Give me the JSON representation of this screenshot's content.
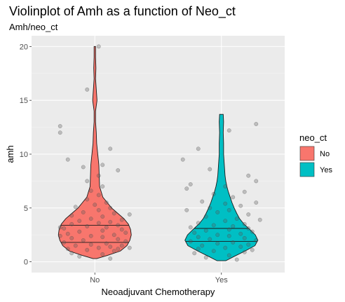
{
  "chart_data": {
    "type": "violin",
    "title": "Violinplot of Amh as a function of Neo_ct",
    "subtitle": "Amh/neo_ct",
    "xlabel": "Neoadjuvant Chemotherapy",
    "ylabel": "amh",
    "categories": [
      "No",
      "Yes"
    ],
    "ylim": [
      -1,
      21
    ],
    "yticks": [
      0,
      5,
      10,
      15,
      20
    ],
    "grid": true,
    "legend": {
      "title": "neo_ct",
      "position": "right",
      "entries": [
        {
          "label": "No",
          "color": "#F8766D"
        },
        {
          "label": "Yes",
          "color": "#00BFC4"
        }
      ]
    },
    "series": [
      {
        "category": "No",
        "color": "#F8766D",
        "ymin": 0.3,
        "ymax": 20,
        "quartiles": [
          1.8,
          3.4
        ],
        "density": [
          [
            0.3,
            0.05
          ],
          [
            0.6,
            0.35
          ],
          [
            1.0,
            0.7
          ],
          [
            1.5,
            0.88
          ],
          [
            2.0,
            0.96
          ],
          [
            2.5,
            1.0
          ],
          [
            3.0,
            0.98
          ],
          [
            3.5,
            0.92
          ],
          [
            4.0,
            0.8
          ],
          [
            4.5,
            0.63
          ],
          [
            5.0,
            0.46
          ],
          [
            5.5,
            0.34
          ],
          [
            6.0,
            0.22
          ],
          [
            7.0,
            0.13
          ],
          [
            8.0,
            0.12
          ],
          [
            9.0,
            0.11
          ],
          [
            10.0,
            0.08
          ],
          [
            11.0,
            0.05
          ],
          [
            12.0,
            0.04
          ],
          [
            13.0,
            0.02
          ],
          [
            14.0,
            0.02
          ],
          [
            15.0,
            0.06
          ],
          [
            16.0,
            0.04
          ],
          [
            17.0,
            0.02
          ],
          [
            18.0,
            0.03
          ],
          [
            19.0,
            0.02
          ],
          [
            20.0,
            0.02
          ]
        ],
        "points": [
          [
            0.2,
            0.3
          ],
          [
            -0.2,
            0.5
          ],
          [
            0.1,
            0.7
          ],
          [
            -0.3,
            0.8
          ],
          [
            0.25,
            1.0
          ],
          [
            -0.1,
            1.1
          ],
          [
            0.3,
            1.2
          ],
          [
            -0.35,
            1.2
          ],
          [
            0.05,
            1.3
          ],
          [
            0.2,
            1.4
          ],
          [
            -0.25,
            1.5
          ],
          [
            0.35,
            1.5
          ],
          [
            -0.05,
            1.6
          ],
          [
            0.15,
            1.7
          ],
          [
            -0.4,
            1.8
          ],
          [
            0.4,
            1.9
          ],
          [
            -0.15,
            2.0
          ],
          [
            0.3,
            2.1
          ],
          [
            -0.3,
            2.2
          ],
          [
            0.1,
            2.3
          ],
          [
            -0.05,
            2.4
          ],
          [
            0.25,
            2.5
          ],
          [
            -0.35,
            2.6
          ],
          [
            0.4,
            2.7
          ],
          [
            -0.2,
            2.8
          ],
          [
            0.1,
            2.9
          ],
          [
            0.35,
            3.0
          ],
          [
            -0.4,
            3.1
          ],
          [
            0.15,
            3.2
          ],
          [
            -0.1,
            3.3
          ],
          [
            0.3,
            3.4
          ],
          [
            -0.3,
            3.5
          ],
          [
            0.05,
            3.6
          ],
          [
            0.2,
            3.7
          ],
          [
            -0.2,
            3.8
          ],
          [
            0.35,
            3.9
          ],
          [
            -0.05,
            4.0
          ],
          [
            0.1,
            4.2
          ],
          [
            -0.3,
            4.3
          ],
          [
            0.25,
            4.5
          ],
          [
            -0.15,
            4.6
          ],
          [
            0.05,
            4.8
          ],
          [
            0.2,
            5.0
          ],
          [
            -0.25,
            5.1
          ],
          [
            0.0,
            5.3
          ],
          [
            0.15,
            5.5
          ],
          [
            -0.1,
            5.8
          ],
          [
            0.05,
            6.2
          ],
          [
            -0.05,
            6.6
          ],
          [
            0.1,
            7.0
          ],
          [
            -0.1,
            7.5
          ],
          [
            0.05,
            8.0
          ],
          [
            0.3,
            8.5
          ],
          [
            -0.15,
            8.8
          ],
          [
            0.1,
            9.0
          ],
          [
            -0.35,
            9.5
          ],
          [
            0.2,
            10.5
          ],
          [
            -0.45,
            12.0
          ],
          [
            -0.45,
            12.6
          ],
          [
            -0.1,
            16.0
          ],
          [
            0.05,
            20.0
          ],
          [
            0.45,
            1.3
          ],
          [
            -0.45,
            3.2
          ],
          [
            0.45,
            4.4
          ],
          [
            -0.45,
            2.4
          ]
        ]
      },
      {
        "category": "Yes",
        "color": "#00BFC4",
        "ymin": 0.1,
        "ymax": 13.7,
        "quartiles": [
          1.9,
          3.1
        ],
        "density": [
          [
            0.1,
            0.12
          ],
          [
            0.5,
            0.35
          ],
          [
            1.0,
            0.65
          ],
          [
            1.5,
            0.92
          ],
          [
            2.0,
            1.0
          ],
          [
            2.5,
            0.93
          ],
          [
            3.0,
            0.78
          ],
          [
            3.5,
            0.62
          ],
          [
            4.0,
            0.5
          ],
          [
            4.5,
            0.42
          ],
          [
            5.0,
            0.35
          ],
          [
            5.5,
            0.29
          ],
          [
            6.0,
            0.24
          ],
          [
            6.5,
            0.19
          ],
          [
            7.0,
            0.15
          ],
          [
            7.5,
            0.12
          ],
          [
            8.0,
            0.1
          ],
          [
            9.0,
            0.08
          ],
          [
            10.0,
            0.06
          ],
          [
            11.0,
            0.06
          ],
          [
            12.0,
            0.05
          ],
          [
            13.0,
            0.06
          ],
          [
            13.7,
            0.05
          ]
        ],
        "points": [
          [
            0.2,
            0.2
          ],
          [
            -0.2,
            0.4
          ],
          [
            0.1,
            0.6
          ],
          [
            -0.35,
            0.8
          ],
          [
            0.3,
            0.9
          ],
          [
            -0.1,
            1.0
          ],
          [
            0.4,
            1.1
          ],
          [
            -0.3,
            1.2
          ],
          [
            0.05,
            1.3
          ],
          [
            0.25,
            1.4
          ],
          [
            -0.25,
            1.5
          ],
          [
            0.35,
            1.6
          ],
          [
            -0.05,
            1.7
          ],
          [
            0.15,
            1.8
          ],
          [
            -0.4,
            1.9
          ],
          [
            0.45,
            2.0
          ],
          [
            -0.15,
            2.1
          ],
          [
            0.3,
            2.2
          ],
          [
            -0.3,
            2.3
          ],
          [
            0.1,
            2.4
          ],
          [
            -0.05,
            2.5
          ],
          [
            0.25,
            2.6
          ],
          [
            -0.35,
            2.7
          ],
          [
            0.4,
            2.8
          ],
          [
            -0.2,
            2.9
          ],
          [
            0.1,
            3.0
          ],
          [
            0.35,
            3.1
          ],
          [
            -0.4,
            3.2
          ],
          [
            0.15,
            3.3
          ],
          [
            -0.1,
            3.4
          ],
          [
            0.3,
            3.5
          ],
          [
            -0.3,
            3.6
          ],
          [
            0.05,
            3.8
          ],
          [
            0.2,
            4.0
          ],
          [
            -0.2,
            4.2
          ],
          [
            0.35,
            4.4
          ],
          [
            -0.05,
            4.6
          ],
          [
            0.1,
            4.8
          ],
          [
            -0.15,
            5.0
          ],
          [
            0.25,
            5.2
          ],
          [
            0.05,
            5.4
          ],
          [
            -0.25,
            5.6
          ],
          [
            0.15,
            6.0
          ],
          [
            -0.1,
            6.3
          ],
          [
            0.3,
            6.5
          ],
          [
            0.05,
            7.0
          ],
          [
            -0.4,
            7.2
          ],
          [
            0.45,
            7.5
          ],
          [
            0.35,
            8.0
          ],
          [
            -0.5,
            9.5
          ],
          [
            -0.3,
            10.5
          ],
          [
            0.45,
            12.8
          ],
          [
            0.1,
            12.2
          ],
          [
            -0.15,
            8.6
          ],
          [
            0.45,
            5.5
          ],
          [
            -0.45,
            4.8
          ],
          [
            0.5,
            3.9
          ],
          [
            -0.45,
            6.8
          ]
        ]
      }
    ]
  }
}
